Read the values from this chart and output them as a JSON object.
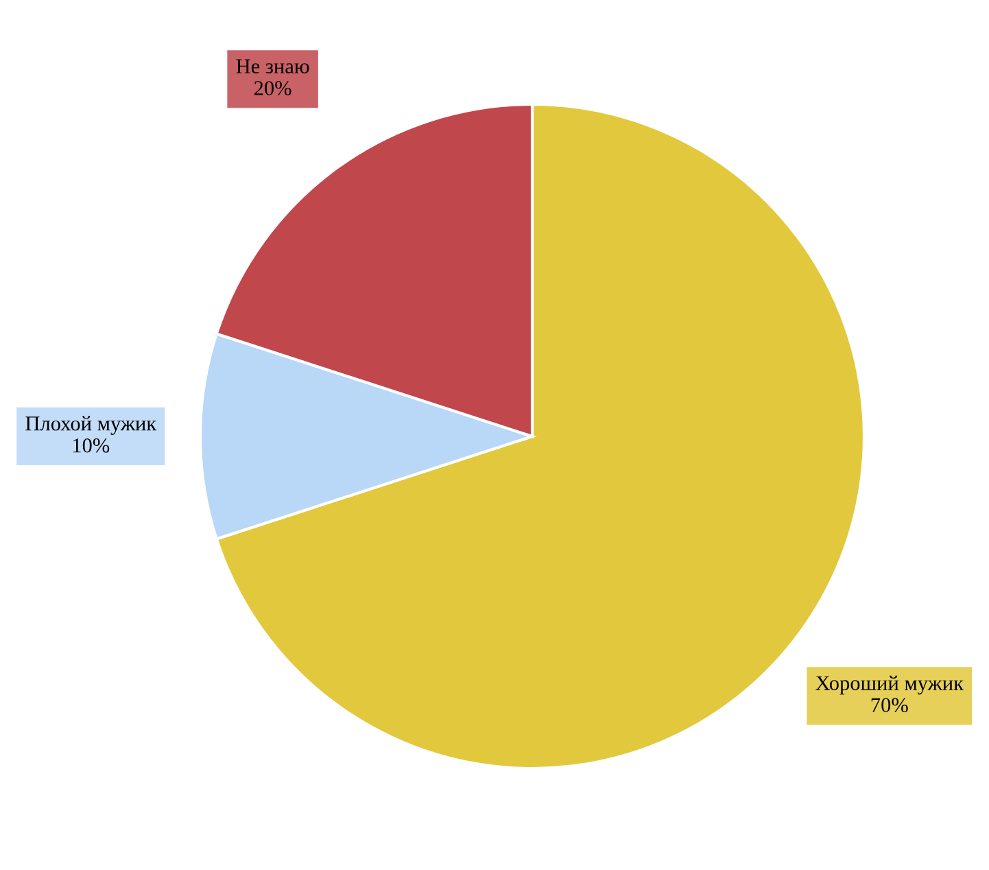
{
  "chart_data": {
    "type": "pie",
    "categories": [
      "Хороший мужик",
      "Плохой мужик",
      "Не знаю"
    ],
    "values": [
      70,
      10,
      20
    ],
    "colors": [
      "#e2c83c",
      "#b9d7f7",
      "#c0474b"
    ],
    "value_labels": [
      "70%",
      "10%",
      "20%"
    ]
  }
}
